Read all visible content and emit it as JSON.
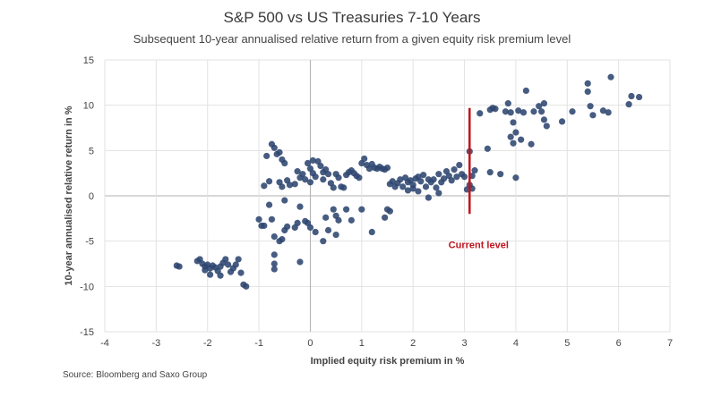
{
  "chart_data": {
    "type": "scatter",
    "title": "S&P 500 vs US Treasuries 7-10 Years",
    "subtitle": "Subsequent 10-year annualised relative return from a given equity risk premium level",
    "xlabel": "Implied equity risk premium in %",
    "ylabel": "10-year annualised relative return in %",
    "xlim": [
      -4,
      7
    ],
    "ylim": [
      -15,
      15
    ],
    "xticks": [
      -4,
      -3,
      -2,
      -1,
      0,
      1,
      2,
      3,
      4,
      5,
      6,
      7
    ],
    "yticks": [
      15,
      10,
      5,
      0,
      -5,
      -10,
      -15
    ],
    "grid": true,
    "point_color": "#2e4570",
    "annotation": {
      "text": "Current level",
      "x": 3.1,
      "y_from": -2,
      "y_to": 9.7,
      "color": "#c0141c"
    },
    "source": "Source: Bloomberg and Saxo Group",
    "points": [
      [
        -2.6,
        -7.7
      ],
      [
        -2.55,
        -7.8
      ],
      [
        -2.2,
        -7.2
      ],
      [
        -2.15,
        -7.0
      ],
      [
        -2.1,
        -7.5
      ],
      [
        -2.05,
        -7.8
      ],
      [
        -2.0,
        -7.6
      ],
      [
        -1.95,
        -8.0
      ],
      [
        -1.9,
        -7.7
      ],
      [
        -1.85,
        -7.9
      ],
      [
        -1.8,
        -8.3
      ],
      [
        -1.75,
        -7.8
      ],
      [
        -1.7,
        -7.4
      ],
      [
        -1.65,
        -7.0
      ],
      [
        -1.6,
        -7.6
      ],
      [
        -1.5,
        -8.0
      ],
      [
        -1.45,
        -7.6
      ],
      [
        -1.4,
        -7.0
      ],
      [
        -1.35,
        -8.5
      ],
      [
        -1.3,
        -9.8
      ],
      [
        -1.25,
        -10.0
      ],
      [
        -1.95,
        -8.7
      ],
      [
        -1.75,
        -8.8
      ],
      [
        -1.55,
        -8.4
      ],
      [
        -2.05,
        -8.2
      ],
      [
        -1.0,
        -2.6
      ],
      [
        -0.95,
        -3.3
      ],
      [
        -0.9,
        -3.3
      ],
      [
        -0.8,
        -1.0
      ],
      [
        -0.75,
        -2.6
      ],
      [
        -0.7,
        -4.5
      ],
      [
        -0.7,
        -6.5
      ],
      [
        -0.7,
        -7.5
      ],
      [
        -0.6,
        -5.0
      ],
      [
        -0.55,
        -4.8
      ],
      [
        -0.5,
        -3.8
      ],
      [
        -0.45,
        -3.4
      ],
      [
        -0.3,
        -3.5
      ],
      [
        -0.25,
        -3.0
      ],
      [
        -0.1,
        -2.8
      ],
      [
        -0.05,
        -3.0
      ],
      [
        0.0,
        -3.5
      ],
      [
        0.1,
        -4.0
      ],
      [
        0.25,
        -5.0
      ],
      [
        -0.7,
        -8.1
      ],
      [
        -0.2,
        -7.3
      ],
      [
        -0.9,
        1.1
      ],
      [
        -0.85,
        4.4
      ],
      [
        -0.8,
        1.6
      ],
      [
        -0.75,
        5.7
      ],
      [
        -0.7,
        5.3
      ],
      [
        -0.65,
        4.6
      ],
      [
        -0.6,
        4.8
      ],
      [
        -0.55,
        4.0
      ],
      [
        -0.5,
        3.6
      ],
      [
        -0.6,
        1.5
      ],
      [
        -0.55,
        1.0
      ],
      [
        -0.5,
        -0.5
      ],
      [
        -0.45,
        1.7
      ],
      [
        -0.4,
        1.2
      ],
      [
        -0.3,
        1.3
      ],
      [
        -0.25,
        2.7
      ],
      [
        -0.2,
        2.0
      ],
      [
        -0.15,
        2.4
      ],
      [
        -0.1,
        1.8
      ],
      [
        -0.05,
        3.6
      ],
      [
        0.0,
        3.0
      ],
      [
        0.05,
        2.5
      ],
      [
        0.05,
        3.9
      ],
      [
        0.1,
        2.1
      ],
      [
        0.15,
        3.8
      ],
      [
        0.2,
        3.3
      ],
      [
        0.25,
        2.6
      ],
      [
        0.3,
        2.9
      ],
      [
        0.35,
        2.4
      ],
      [
        0.4,
        1.4
      ],
      [
        0.45,
        0.9
      ],
      [
        0.5,
        2.4
      ],
      [
        0.55,
        2.0
      ],
      [
        0.6,
        1.0
      ],
      [
        0.65,
        0.9
      ],
      [
        0.7,
        2.3
      ],
      [
        0.75,
        2.6
      ],
      [
        0.8,
        2.8
      ],
      [
        0.85,
        2.5
      ],
      [
        0.9,
        2.2
      ],
      [
        0.95,
        2.0
      ],
      [
        1.0,
        3.6
      ],
      [
        1.05,
        4.1
      ],
      [
        1.1,
        3.4
      ],
      [
        1.15,
        3.0
      ],
      [
        1.2,
        3.5
      ],
      [
        1.25,
        3.1
      ],
      [
        1.3,
        3.0
      ],
      [
        1.35,
        3.2
      ],
      [
        1.4,
        3.0
      ],
      [
        1.45,
        2.9
      ],
      [
        1.5,
        3.1
      ],
      [
        0.25,
        1.8
      ],
      [
        0.0,
        1.5
      ],
      [
        -0.2,
        -1.2
      ],
      [
        0.3,
        -2.4
      ],
      [
        0.35,
        -3.8
      ],
      [
        0.45,
        -1.5
      ],
      [
        0.5,
        -2.2
      ],
      [
        0.55,
        -2.7
      ],
      [
        0.7,
        -1.5
      ],
      [
        0.8,
        -2.7
      ],
      [
        1.0,
        -1.5
      ],
      [
        1.2,
        -4.0
      ],
      [
        1.5,
        -1.5
      ],
      [
        1.55,
        -1.7
      ],
      [
        0.5,
        -4.3
      ],
      [
        1.45,
        -2.4
      ],
      [
        1.55,
        1.3
      ],
      [
        1.6,
        1.6
      ],
      [
        1.65,
        1.0
      ],
      [
        1.7,
        1.4
      ],
      [
        1.75,
        1.8
      ],
      [
        1.8,
        1.0
      ],
      [
        1.85,
        2.0
      ],
      [
        1.9,
        1.5
      ],
      [
        1.95,
        1.7
      ],
      [
        2.0,
        1.2
      ],
      [
        2.05,
        1.9
      ],
      [
        2.1,
        2.1
      ],
      [
        2.15,
        1.6
      ],
      [
        2.2,
        2.3
      ],
      [
        2.25,
        1.0
      ],
      [
        2.3,
        1.8
      ],
      [
        2.35,
        1.5
      ],
      [
        2.4,
        1.8
      ],
      [
        2.45,
        0.9
      ],
      [
        2.5,
        2.4
      ],
      [
        2.55,
        1.5
      ],
      [
        2.6,
        1.9
      ],
      [
        2.65,
        2.7
      ],
      [
        2.7,
        2.2
      ],
      [
        2.75,
        1.7
      ],
      [
        2.8,
        2.9
      ],
      [
        2.85,
        2.1
      ],
      [
        2.9,
        3.4
      ],
      [
        2.95,
        2.4
      ],
      [
        3.0,
        2.1
      ],
      [
        3.05,
        0.7
      ],
      [
        3.1,
        1.2
      ],
      [
        3.15,
        2.2
      ],
      [
        3.15,
        0.8
      ],
      [
        3.2,
        2.8
      ],
      [
        2.0,
        0.8
      ],
      [
        2.1,
        0.5
      ],
      [
        2.3,
        -0.2
      ],
      [
        2.5,
        0.3
      ],
      [
        1.9,
        0.6
      ],
      [
        3.1,
        4.9
      ],
      [
        3.3,
        9.1
      ],
      [
        3.45,
        5.2
      ],
      [
        3.5,
        2.6
      ],
      [
        3.5,
        9.5
      ],
      [
        3.55,
        9.7
      ],
      [
        3.6,
        9.6
      ],
      [
        3.7,
        2.4
      ],
      [
        3.8,
        9.3
      ],
      [
        3.85,
        10.2
      ],
      [
        3.9,
        6.5
      ],
      [
        3.9,
        9.2
      ],
      [
        3.95,
        8.1
      ],
      [
        3.95,
        5.8
      ],
      [
        4.0,
        7.0
      ],
      [
        4.0,
        2.0
      ],
      [
        4.05,
        9.4
      ],
      [
        4.1,
        6.2
      ],
      [
        4.15,
        9.2
      ],
      [
        4.2,
        11.6
      ],
      [
        4.3,
        5.7
      ],
      [
        4.35,
        9.3
      ],
      [
        4.45,
        9.9
      ],
      [
        4.5,
        9.3
      ],
      [
        4.55,
        10.2
      ],
      [
        4.55,
        8.4
      ],
      [
        4.6,
        7.7
      ],
      [
        4.9,
        8.2
      ],
      [
        5.1,
        9.3
      ],
      [
        5.4,
        12.4
      ],
      [
        5.4,
        11.5
      ],
      [
        5.45,
        9.9
      ],
      [
        5.5,
        8.9
      ],
      [
        5.7,
        9.4
      ],
      [
        5.8,
        9.2
      ],
      [
        5.85,
        13.1
      ],
      [
        6.2,
        10.1
      ],
      [
        6.25,
        11.0
      ],
      [
        6.4,
        10.9
      ]
    ]
  }
}
